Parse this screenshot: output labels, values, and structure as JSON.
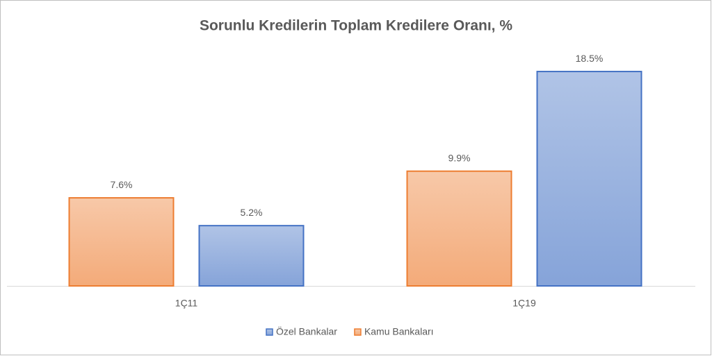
{
  "chart_data": {
    "type": "bar",
    "title": "Sorunlu  Kredilerin  Toplam  Kredilere  Oranı,  %",
    "categories": [
      "1Ç11",
      "1Ç19"
    ],
    "series": [
      {
        "name": "Kamu Bankaları",
        "color": "#ed7d31",
        "values": [
          7.6,
          9.9
        ],
        "value_labels": [
          "7.6%",
          "9.9%"
        ]
      },
      {
        "name": "Özel Bankalar",
        "color": "#4472c4",
        "values": [
          5.2,
          18.5
        ],
        "value_labels": [
          "5.2%",
          "18.5%"
        ]
      }
    ],
    "legend": "bottom"
  }
}
